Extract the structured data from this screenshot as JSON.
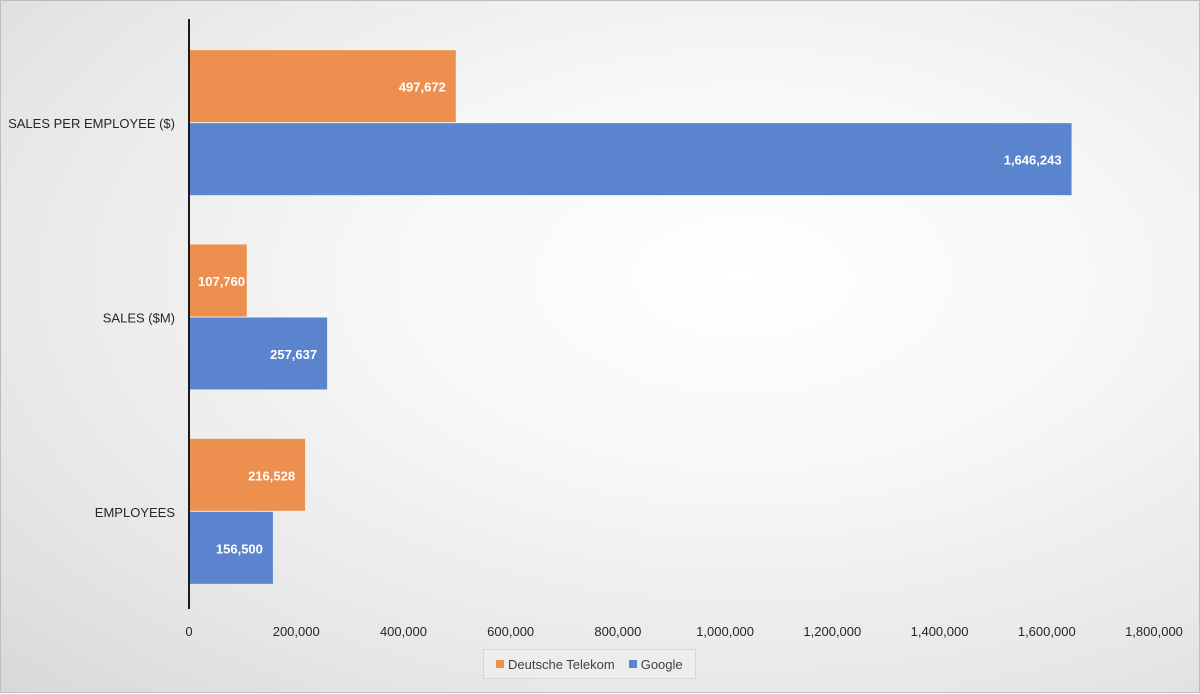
{
  "chart_data": {
    "type": "bar",
    "orientation": "horizontal",
    "categories": [
      "SALES PER EMPLOYEE ($)",
      "SALES ($M)",
      "EMPLOYEES"
    ],
    "series": [
      {
        "name": "Deutsche Telekom",
        "color": "#ed8f4f",
        "values": [
          497672,
          107760,
          216528
        ],
        "labels": [
          "497,672",
          "107,760",
          "216,528"
        ]
      },
      {
        "name": "Google",
        "color": "#5b84ce",
        "values": [
          1646243,
          257637,
          156500
        ],
        "labels": [
          "1,646,243",
          "257,637",
          "156,500"
        ]
      }
    ],
    "xlim": [
      0,
      1800000
    ],
    "x_ticks": [
      0,
      200000,
      400000,
      600000,
      800000,
      1000000,
      1200000,
      1400000,
      1600000,
      1800000
    ],
    "x_tick_labels": [
      "0",
      "200,000",
      "400,000",
      "600,000",
      "800,000",
      "1,000,000",
      "1,200,000",
      "1,400,000",
      "1,600,000",
      "1,800,000"
    ],
    "grid": false,
    "legend_position": "bottom"
  }
}
